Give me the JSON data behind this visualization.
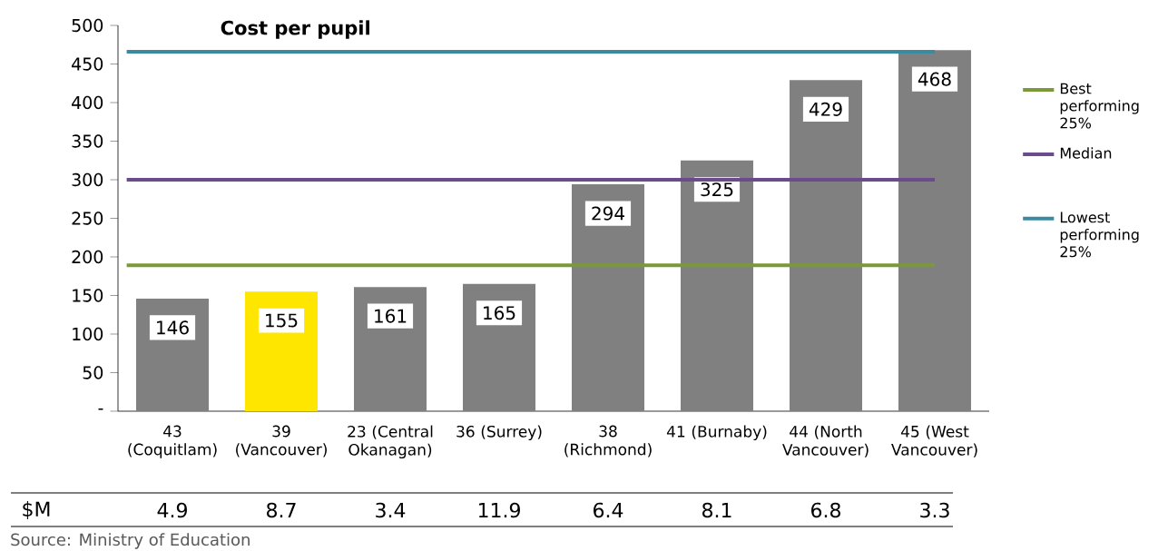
{
  "chart_data": {
    "type": "bar",
    "title": "Cost per pupil",
    "categories": [
      "43 (Coquitlam)",
      "39 (Vancouver)",
      "23 (Central Okanagan)",
      "36 (Surrey)",
      "38 (Richmond)",
      "41 (Burnaby)",
      "44 (North Vancouver)",
      "45 (West Vancouver)"
    ],
    "values": [
      146,
      155,
      161,
      165,
      294,
      325,
      429,
      468
    ],
    "colors": [
      "#808080",
      "#ffe600",
      "#808080",
      "#808080",
      "#808080",
      "#808080",
      "#808080",
      "#808080"
    ],
    "data_labels": true,
    "ylim": [
      0,
      500
    ],
    "yticks": [
      {
        "value": 0,
        "label": "-"
      },
      50,
      100,
      150,
      200,
      250,
      300,
      350,
      400,
      450,
      500
    ],
    "ref_lines": [
      {
        "axis": "y",
        "value": 189,
        "label": "Best performing 25%",
        "color": "#7a9a3a"
      },
      {
        "axis": "y",
        "value": 300,
        "label": "Median",
        "color": "#6a4c8c"
      },
      {
        "axis": "y",
        "value": 466,
        "label": "Lowest performing 25%",
        "color": "#3a8aa0"
      }
    ],
    "legend": "right",
    "grid": false,
    "annotations": [
      "$M",
      "4.9",
      "8.7",
      "3.4",
      "11.9",
      "6.4",
      "8.1",
      "6.8",
      "3.3",
      "Source: Ministry of Education"
    ]
  }
}
